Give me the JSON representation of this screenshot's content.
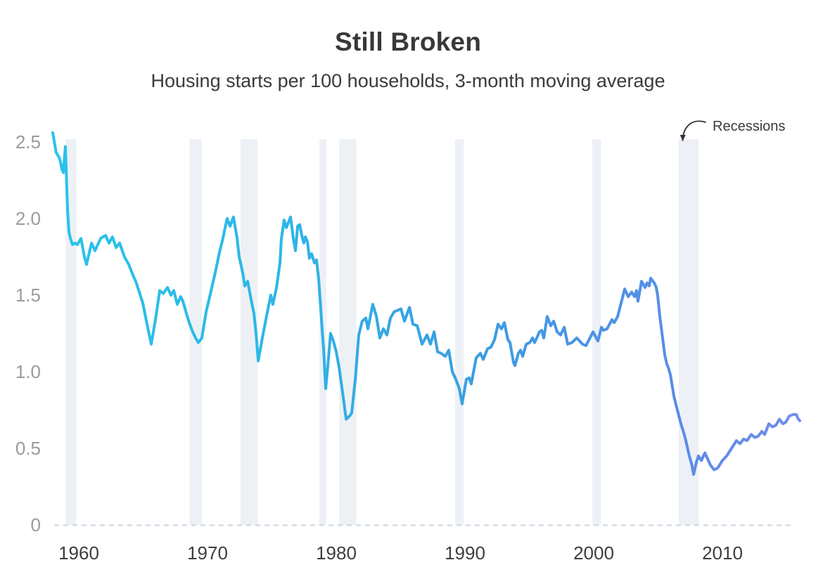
{
  "title": "Still Broken",
  "subtitle": "Housing starts per 100 households, 3-month moving average",
  "annotation": {
    "label": "Recessions"
  },
  "y_axis": {
    "tick_labels": [
      "0",
      "0.5",
      "1.0",
      "1.5",
      "2.0",
      "2.5"
    ],
    "tick_values": [
      0,
      0.5,
      1.0,
      1.5,
      2.0,
      2.5
    ]
  },
  "x_axis": {
    "tick_labels": [
      "1960",
      "1970",
      "1980",
      "1990",
      "2000",
      "2010"
    ],
    "tick_values": [
      1960,
      1970,
      1980,
      1990,
      2000,
      2010
    ]
  },
  "colors": {
    "background": "#ffffff",
    "title_text": "#383838",
    "subtitle_text": "#3a3a3a",
    "annotation_text": "#3a3a3a",
    "axis_value_labels": "#9b9b9b",
    "axis_year_labels": "#3d3d3d",
    "recession_band": "#edf1f6",
    "zero_line": "#c9d4e0",
    "line_gradient": [
      {
        "offset": 0.0,
        "color": "#29c3ea"
      },
      {
        "offset": 0.3,
        "color": "#2db7e7"
      },
      {
        "offset": 0.45,
        "color": "#35a7e3"
      },
      {
        "offset": 0.6,
        "color": "#3f9be2"
      },
      {
        "offset": 0.75,
        "color": "#4e92e6"
      },
      {
        "offset": 0.88,
        "color": "#608ae8"
      },
      {
        "offset": 1.0,
        "color": "#7190ea"
      }
    ]
  },
  "chart_data": {
    "type": "line",
    "title": "Still Broken",
    "subtitle": "Housing starts per 100 households, 3-month moving average",
    "xlabel": "",
    "ylabel": "",
    "xlim": [
      1959.0,
      2017.8
    ],
    "ylim": [
      0,
      2.52
    ],
    "x_ticks": [
      1960,
      1970,
      1980,
      1990,
      2000,
      2010
    ],
    "y_ticks": [
      0,
      0.5,
      1.0,
      1.5,
      2.0,
      2.5
    ],
    "grid": "zero-baseline-dashed-only",
    "legend": "none",
    "recessions": [
      [
        1960.29,
        1961.12
      ],
      [
        1969.92,
        1970.87
      ],
      [
        1973.87,
        1975.21
      ],
      [
        1980.0,
        1980.54
      ],
      [
        1981.54,
        1982.87
      ],
      [
        1990.54,
        1991.21
      ],
      [
        2001.21,
        2001.87
      ],
      [
        2007.92,
        2009.46
      ]
    ],
    "series": [
      {
        "name": "Housing starts per 100 households (3-month moving average)",
        "points": [
          [
            1959.29,
            2.56
          ],
          [
            1959.56,
            2.43
          ],
          [
            1959.78,
            2.4
          ],
          [
            1959.89,
            2.37
          ],
          [
            1960.0,
            2.32
          ],
          [
            1960.11,
            2.3
          ],
          [
            1960.27,
            2.47
          ],
          [
            1960.44,
            2.05
          ],
          [
            1960.55,
            1.91
          ],
          [
            1960.66,
            1.87
          ],
          [
            1960.82,
            1.83
          ],
          [
            1961.04,
            1.84
          ],
          [
            1961.2,
            1.83
          ],
          [
            1961.48,
            1.87
          ],
          [
            1961.75,
            1.75
          ],
          [
            1961.91,
            1.7
          ],
          [
            1962.3,
            1.84
          ],
          [
            1962.57,
            1.79
          ],
          [
            1963.01,
            1.87
          ],
          [
            1963.39,
            1.89
          ],
          [
            1963.66,
            1.84
          ],
          [
            1963.93,
            1.88
          ],
          [
            1964.21,
            1.81
          ],
          [
            1964.48,
            1.84
          ],
          [
            1964.86,
            1.75
          ],
          [
            1965.19,
            1.7
          ],
          [
            1965.57,
            1.62
          ],
          [
            1965.74,
            1.59
          ],
          [
            1966.28,
            1.45
          ],
          [
            1966.61,
            1.31
          ],
          [
            1966.94,
            1.18
          ],
          [
            1967.27,
            1.34
          ],
          [
            1967.6,
            1.53
          ],
          [
            1967.87,
            1.51
          ],
          [
            1968.2,
            1.55
          ],
          [
            1968.47,
            1.5
          ],
          [
            1968.69,
            1.53
          ],
          [
            1968.96,
            1.44
          ],
          [
            1969.23,
            1.49
          ],
          [
            1969.4,
            1.46
          ],
          [
            1969.67,
            1.38
          ],
          [
            1969.89,
            1.32
          ],
          [
            1970.11,
            1.27
          ],
          [
            1970.38,
            1.22
          ],
          [
            1970.6,
            1.19
          ],
          [
            1970.87,
            1.22
          ],
          [
            1971.2,
            1.39
          ],
          [
            1971.59,
            1.53
          ],
          [
            1971.97,
            1.67
          ],
          [
            1972.24,
            1.78
          ],
          [
            1972.51,
            1.87
          ],
          [
            1972.68,
            1.94
          ],
          [
            1972.84,
            2.0
          ],
          [
            1973.06,
            1.95
          ],
          [
            1973.33,
            2.01
          ],
          [
            1973.61,
            1.87
          ],
          [
            1973.77,
            1.75
          ],
          [
            1974.04,
            1.65
          ],
          [
            1974.21,
            1.56
          ],
          [
            1974.43,
            1.59
          ],
          [
            1974.7,
            1.47
          ],
          [
            1974.92,
            1.38
          ],
          [
            1975.08,
            1.25
          ],
          [
            1975.25,
            1.07
          ],
          [
            1975.57,
            1.22
          ],
          [
            1975.96,
            1.39
          ],
          [
            1976.23,
            1.5
          ],
          [
            1976.39,
            1.44
          ],
          [
            1976.67,
            1.55
          ],
          [
            1976.94,
            1.71
          ],
          [
            1977.05,
            1.87
          ],
          [
            1977.27,
            1.99
          ],
          [
            1977.43,
            1.94
          ],
          [
            1977.76,
            2.01
          ],
          [
            1977.98,
            1.87
          ],
          [
            1978.14,
            1.79
          ],
          [
            1978.31,
            1.95
          ],
          [
            1978.47,
            1.96
          ],
          [
            1978.69,
            1.87
          ],
          [
            1978.8,
            1.84
          ],
          [
            1978.91,
            1.88
          ],
          [
            1979.07,
            1.85
          ],
          [
            1979.23,
            1.74
          ],
          [
            1979.4,
            1.77
          ],
          [
            1979.62,
            1.71
          ],
          [
            1979.78,
            1.73
          ],
          [
            1979.95,
            1.6
          ],
          [
            1980.11,
            1.41
          ],
          [
            1980.22,
            1.27
          ],
          [
            1980.33,
            1.15
          ],
          [
            1980.49,
            0.89
          ],
          [
            1980.66,
            1.04
          ],
          [
            1980.87,
            1.25
          ],
          [
            1981.09,
            1.2
          ],
          [
            1981.31,
            1.13
          ],
          [
            1981.53,
            1.03
          ],
          [
            1981.86,
            0.83
          ],
          [
            1982.08,
            0.69
          ],
          [
            1982.35,
            0.71
          ],
          [
            1982.51,
            0.73
          ],
          [
            1982.79,
            0.95
          ],
          [
            1983.06,
            1.24
          ],
          [
            1983.33,
            1.33
          ],
          [
            1983.61,
            1.35
          ],
          [
            1983.77,
            1.28
          ],
          [
            1984.15,
            1.44
          ],
          [
            1984.43,
            1.36
          ],
          [
            1984.7,
            1.22
          ],
          [
            1984.97,
            1.28
          ],
          [
            1985.25,
            1.24
          ],
          [
            1985.52,
            1.35
          ],
          [
            1985.79,
            1.39
          ],
          [
            1986.34,
            1.41
          ],
          [
            1986.61,
            1.33
          ],
          [
            1987.0,
            1.42
          ],
          [
            1987.27,
            1.31
          ],
          [
            1987.6,
            1.3
          ],
          [
            1987.98,
            1.18
          ],
          [
            1988.36,
            1.24
          ],
          [
            1988.63,
            1.18
          ],
          [
            1988.91,
            1.26
          ],
          [
            1989.18,
            1.13
          ],
          [
            1989.45,
            1.12
          ],
          [
            1989.78,
            1.1
          ],
          [
            1990.05,
            1.14
          ],
          [
            1990.33,
            1.0
          ],
          [
            1990.6,
            0.95
          ],
          [
            1990.87,
            0.89
          ],
          [
            1991.09,
            0.79
          ],
          [
            1991.42,
            0.95
          ],
          [
            1991.64,
            0.96
          ],
          [
            1991.8,
            0.92
          ],
          [
            1992.18,
            1.09
          ],
          [
            1992.51,
            1.12
          ],
          [
            1992.73,
            1.08
          ],
          [
            1993.06,
            1.15
          ],
          [
            1993.33,
            1.16
          ],
          [
            1993.61,
            1.21
          ],
          [
            1993.88,
            1.31
          ],
          [
            1994.15,
            1.28
          ],
          [
            1994.37,
            1.32
          ],
          [
            1994.64,
            1.21
          ],
          [
            1994.81,
            1.19
          ],
          [
            1995.08,
            1.06
          ],
          [
            1995.19,
            1.04
          ],
          [
            1995.46,
            1.12
          ],
          [
            1995.63,
            1.14
          ],
          [
            1995.79,
            1.1
          ],
          [
            1996.07,
            1.18
          ],
          [
            1996.34,
            1.19
          ],
          [
            1996.56,
            1.22
          ],
          [
            1996.72,
            1.19
          ],
          [
            1997.1,
            1.26
          ],
          [
            1997.27,
            1.27
          ],
          [
            1997.43,
            1.22
          ],
          [
            1997.7,
            1.36
          ],
          [
            1997.98,
            1.3
          ],
          [
            1998.2,
            1.33
          ],
          [
            1998.47,
            1.26
          ],
          [
            1998.74,
            1.24
          ],
          [
            1999.02,
            1.29
          ],
          [
            1999.29,
            1.18
          ],
          [
            1999.62,
            1.19
          ],
          [
            2000.0,
            1.22
          ],
          [
            2000.44,
            1.18
          ],
          [
            2000.71,
            1.17
          ],
          [
            2001.26,
            1.26
          ],
          [
            2001.64,
            1.2
          ],
          [
            2001.91,
            1.29
          ],
          [
            2002.08,
            1.27
          ],
          [
            2002.35,
            1.28
          ],
          [
            2002.73,
            1.34
          ],
          [
            2002.9,
            1.32
          ],
          [
            2003.17,
            1.36
          ],
          [
            2003.72,
            1.54
          ],
          [
            2003.99,
            1.49
          ],
          [
            2004.26,
            1.52
          ],
          [
            2004.48,
            1.49
          ],
          [
            2004.64,
            1.53
          ],
          [
            2004.75,
            1.46
          ],
          [
            2005.03,
            1.59
          ],
          [
            2005.3,
            1.55
          ],
          [
            2005.46,
            1.58
          ],
          [
            2005.63,
            1.56
          ],
          [
            2005.74,
            1.61
          ],
          [
            2006.01,
            1.58
          ],
          [
            2006.17,
            1.55
          ],
          [
            2006.28,
            1.5
          ],
          [
            2006.45,
            1.36
          ],
          [
            2006.66,
            1.22
          ],
          [
            2006.83,
            1.11
          ],
          [
            2006.99,
            1.05
          ],
          [
            2007.1,
            1.03
          ],
          [
            2007.27,
            0.98
          ],
          [
            2007.54,
            0.84
          ],
          [
            2007.81,
            0.75
          ],
          [
            2008.09,
            0.66
          ],
          [
            2008.31,
            0.6
          ],
          [
            2008.47,
            0.55
          ],
          [
            2008.63,
            0.49
          ],
          [
            2008.74,
            0.45
          ],
          [
            2008.91,
            0.4
          ],
          [
            2009.07,
            0.33
          ],
          [
            2009.29,
            0.41
          ],
          [
            2009.45,
            0.45
          ],
          [
            2009.67,
            0.42
          ],
          [
            2009.95,
            0.47
          ],
          [
            2010.11,
            0.44
          ],
          [
            2010.38,
            0.39
          ],
          [
            2010.66,
            0.36
          ],
          [
            2010.93,
            0.37
          ],
          [
            2011.31,
            0.42
          ],
          [
            2011.64,
            0.45
          ],
          [
            2012.02,
            0.5
          ],
          [
            2012.4,
            0.55
          ],
          [
            2012.68,
            0.53
          ],
          [
            2012.95,
            0.56
          ],
          [
            2013.22,
            0.55
          ],
          [
            2013.55,
            0.59
          ],
          [
            2013.83,
            0.57
          ],
          [
            2014.1,
            0.58
          ],
          [
            2014.37,
            0.61
          ],
          [
            2014.59,
            0.59
          ],
          [
            2014.92,
            0.66
          ],
          [
            2015.19,
            0.64
          ],
          [
            2015.46,
            0.65
          ],
          [
            2015.74,
            0.69
          ],
          [
            2016.01,
            0.66
          ],
          [
            2016.23,
            0.67
          ],
          [
            2016.5,
            0.71
          ],
          [
            2016.78,
            0.72
          ],
          [
            2017.05,
            0.72
          ],
          [
            2017.21,
            0.69
          ],
          [
            2017.32,
            0.68
          ]
        ]
      }
    ]
  }
}
